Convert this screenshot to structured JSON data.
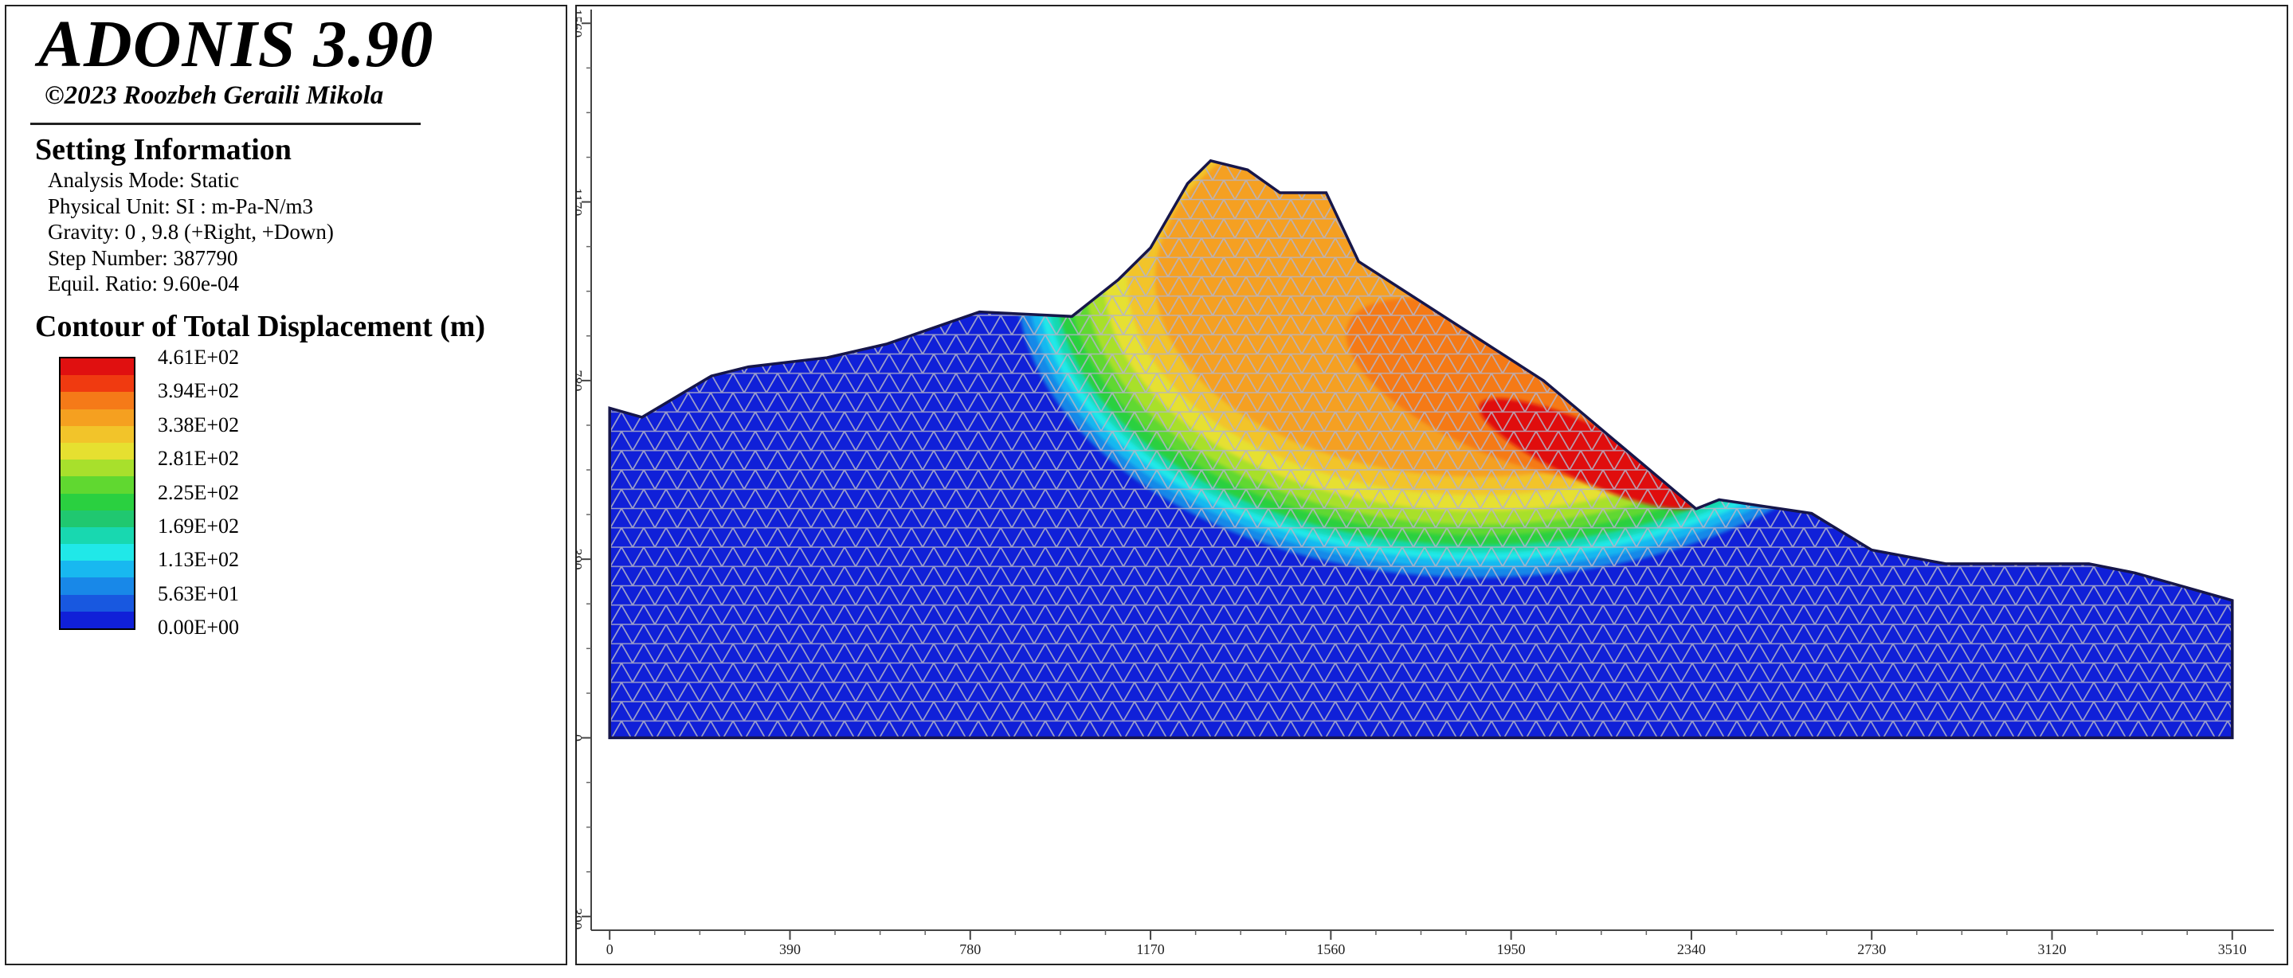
{
  "app": {
    "title": "ADONIS 3.90",
    "copyright": "©2023 Roozbeh Geraili Mikola"
  },
  "settings": {
    "heading": "Setting Information",
    "lines": [
      "Analysis Mode: Static",
      "Physical Unit: SI : m-Pa-N/m3",
      "Gravity: 0 , 9.8 (+Right, +Down)",
      "Step Number: 387790",
      "Equil. Ratio: 9.60e-04"
    ]
  },
  "contour": {
    "heading": "Contour of Total Displacement (m)",
    "labels": [
      "4.61E+02",
      "3.94E+02",
      "3.38E+02",
      "2.81E+02",
      "2.25E+02",
      "1.69E+02",
      "1.13E+02",
      "5.63E+01",
      "0.00E+00"
    ],
    "colors": [
      "#e01010",
      "#f03a10",
      "#f57a18",
      "#f5a020",
      "#f2c42a",
      "#e6e030",
      "#a8e02c",
      "#60d830",
      "#2ad040",
      "#20c870",
      "#18d8b0",
      "#20e8e8",
      "#18b8f0",
      "#1888e8",
      "#1858e0",
      "#1020d8"
    ]
  },
  "chart_data": {
    "type": "heatmap",
    "title": "Contour of Total Displacement (m)",
    "x_ticks": [
      0,
      390,
      780,
      1170,
      1560,
      1950,
      2340,
      2730,
      3120,
      3510
    ],
    "y_ticks": [
      -390,
      0,
      390,
      780,
      1170,
      1560
    ],
    "xlim": [
      -40,
      3600
    ],
    "ylim": [
      -420,
      1590
    ],
    "mesh_color": "#b4b4c8",
    "boundary_color": "#16164a",
    "base_color": "#1020d8",
    "slope_profile": [
      [
        0,
        720
      ],
      [
        70,
        700
      ],
      [
        220,
        790
      ],
      [
        300,
        810
      ],
      [
        470,
        830
      ],
      [
        600,
        860
      ],
      [
        800,
        930
      ],
      [
        1000,
        920
      ],
      [
        1100,
        1000
      ],
      [
        1170,
        1070
      ],
      [
        1250,
        1210
      ],
      [
        1300,
        1260
      ],
      [
        1380,
        1240
      ],
      [
        1450,
        1190
      ],
      [
        1550,
        1190
      ],
      [
        1620,
        1040
      ],
      [
        2020,
        780
      ],
      [
        2350,
        500
      ],
      [
        2400,
        520
      ],
      [
        2600,
        490
      ],
      [
        2730,
        410
      ],
      [
        2890,
        380
      ],
      [
        3000,
        380
      ],
      [
        3200,
        380
      ],
      [
        3300,
        360
      ],
      [
        3510,
        300
      ],
      [
        3510,
        0
      ],
      [
        0,
        0
      ]
    ],
    "contour_bands": [
      {
        "value_range": [
          0,
          56.3
        ],
        "color": "#1020d8"
      },
      {
        "value_range": [
          56.3,
          112.6
        ],
        "color": "#18b8f0"
      },
      {
        "value_range": [
          112.6,
          169
        ],
        "color": "#20e8e8"
      },
      {
        "value_range": [
          169,
          225
        ],
        "color": "#2ad040"
      },
      {
        "value_range": [
          225,
          281
        ],
        "color": "#a8e02c"
      },
      {
        "value_range": [
          281,
          338
        ],
        "color": "#e6e030"
      },
      {
        "value_range": [
          338,
          394
        ],
        "color": "#f5a020"
      },
      {
        "value_range": [
          394,
          461
        ],
        "color": "#f57a18"
      },
      {
        "value_range": [
          440,
          461
        ],
        "color": "#e01010"
      }
    ]
  }
}
